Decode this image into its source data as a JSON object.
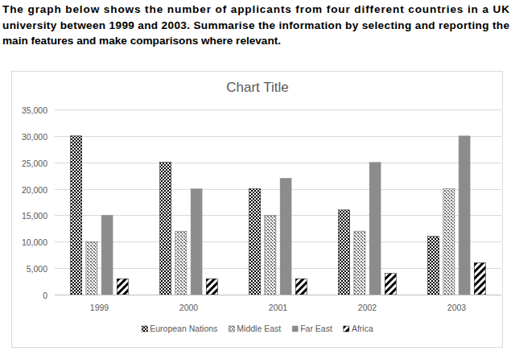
{
  "heading": {
    "lines": [
      "The graph below shows the number of applicants from four different countries in a UK",
      "university between 1999 and 2003. Summarise the information by selecting and reporting the",
      "main features and make comparisons where relevant."
    ]
  },
  "chart_data": {
    "type": "bar",
    "title": "Chart Title",
    "categories": [
      "1999",
      "2000",
      "2001",
      "2002",
      "2003"
    ],
    "series": [
      {
        "name": "European Nations",
        "color": "#000000",
        "values": [
          30000,
          25000,
          20000,
          16000,
          11000
        ]
      },
      {
        "name": "Middle East",
        "color": "#4d4d4d",
        "values": [
          10000,
          12000,
          15000,
          12000,
          20000
        ]
      },
      {
        "name": "Far East",
        "color": "#8c8c8c",
        "values": [
          15000,
          20000,
          22000,
          25000,
          30000
        ]
      },
      {
        "name": "Africa",
        "color": "#000000",
        "values": [
          3000,
          3000,
          3000,
          4000,
          6000
        ]
      }
    ],
    "ylim": [
      0,
      35000
    ],
    "yticks": [
      0,
      {
        "value": 5000,
        "label": "5,000"
      },
      {
        "value": 10000,
        "label": "10,000"
      },
      {
        "value": 15000,
        "label": "15,000"
      },
      {
        "value": 20000,
        "label": "20,000"
      },
      {
        "value": 25000,
        "label": "25,000"
      },
      {
        "value": 30000,
        "label": "30,000"
      },
      {
        "value": 35000,
        "label": "35,000"
      }
    ],
    "grid": true,
    "legend": "bottom"
  }
}
